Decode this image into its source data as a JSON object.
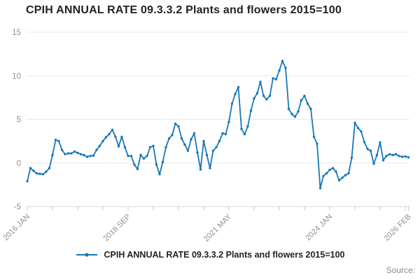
{
  "title": "CPIH ANNUAL RATE 09.3.3.2 Plants and flowers 2015=100",
  "source_label": "Source:",
  "chart_data": {
    "type": "line",
    "title": "CPIH ANNUAL RATE 09.3.3.2 Plants and flowers 2015=100",
    "xlabel": "",
    "ylabel": "",
    "ylim": [
      -5,
      15
    ],
    "y_ticks": [
      15,
      10,
      5,
      0,
      -5
    ],
    "grid": "horizontal",
    "legend_position": "bottom-center",
    "line_color": "#1878b8",
    "grid_color": "#e8e8e8",
    "axis_color": "#d4d4d4",
    "tick_color": "#c3cce2",
    "label_color": "#8f8f8f",
    "x_start": "2016 JAN",
    "x_end": "2026 FEB",
    "x_tick_interval_months": 8,
    "x_axis_labels": [
      {
        "month": 0,
        "label": "2016 JAN"
      },
      {
        "month": 32,
        "label": "2018 SEP"
      },
      {
        "month": 64,
        "label": "2021 MAY"
      },
      {
        "month": 96,
        "label": "2024 JAN"
      },
      {
        "month": 121,
        "label": "2026 FEB"
      }
    ],
    "series": [
      {
        "name": "CPIH ANNUAL RATE 09.3.3.2 Plants and flowers 2015=100",
        "start": "2016-01",
        "frequency": "monthly",
        "values": [
          -2.1,
          -0.6,
          -0.9,
          -1.2,
          -1.25,
          -1.3,
          -1.0,
          -0.6,
          0.9,
          2.65,
          2.5,
          1.5,
          1.0,
          1.1,
          1.1,
          1.3,
          1.15,
          1.0,
          0.9,
          0.7,
          0.8,
          0.85,
          1.5,
          1.95,
          2.5,
          2.95,
          3.3,
          3.8,
          3.0,
          1.9,
          3.0,
          1.8,
          0.8,
          0.8,
          -0.2,
          -0.7,
          0.9,
          0.5,
          0.8,
          1.8,
          1.95,
          -0.2,
          -1.3,
          0.1,
          1.8,
          2.8,
          3.2,
          4.5,
          4.2,
          2.8,
          2.1,
          1.4,
          2.7,
          3.4,
          1.2,
          -0.75,
          2.5,
          0.9,
          -0.6,
          1.4,
          1.8,
          2.5,
          3.4,
          3.3,
          4.7,
          6.8,
          7.9,
          8.7,
          3.9,
          3.3,
          4.2,
          6.0,
          7.4,
          8.0,
          9.3,
          7.7,
          7.3,
          7.7,
          9.7,
          9.6,
          10.6,
          11.7,
          10.9,
          6.2,
          5.6,
          5.3,
          5.9,
          7.2,
          7.7,
          6.8,
          6.2,
          3.0,
          2.2,
          -2.9,
          -1.5,
          -1.2,
          -0.8,
          -0.6,
          -1.0,
          -2.0,
          -1.7,
          -1.4,
          -1.2,
          0.6,
          4.6,
          4.0,
          3.6,
          2.4,
          1.6,
          1.4,
          -0.1,
          0.9,
          2.35,
          0.3,
          0.8,
          1.0,
          0.9,
          1.0,
          0.8,
          0.7,
          0.75,
          0.65
        ]
      }
    ]
  }
}
